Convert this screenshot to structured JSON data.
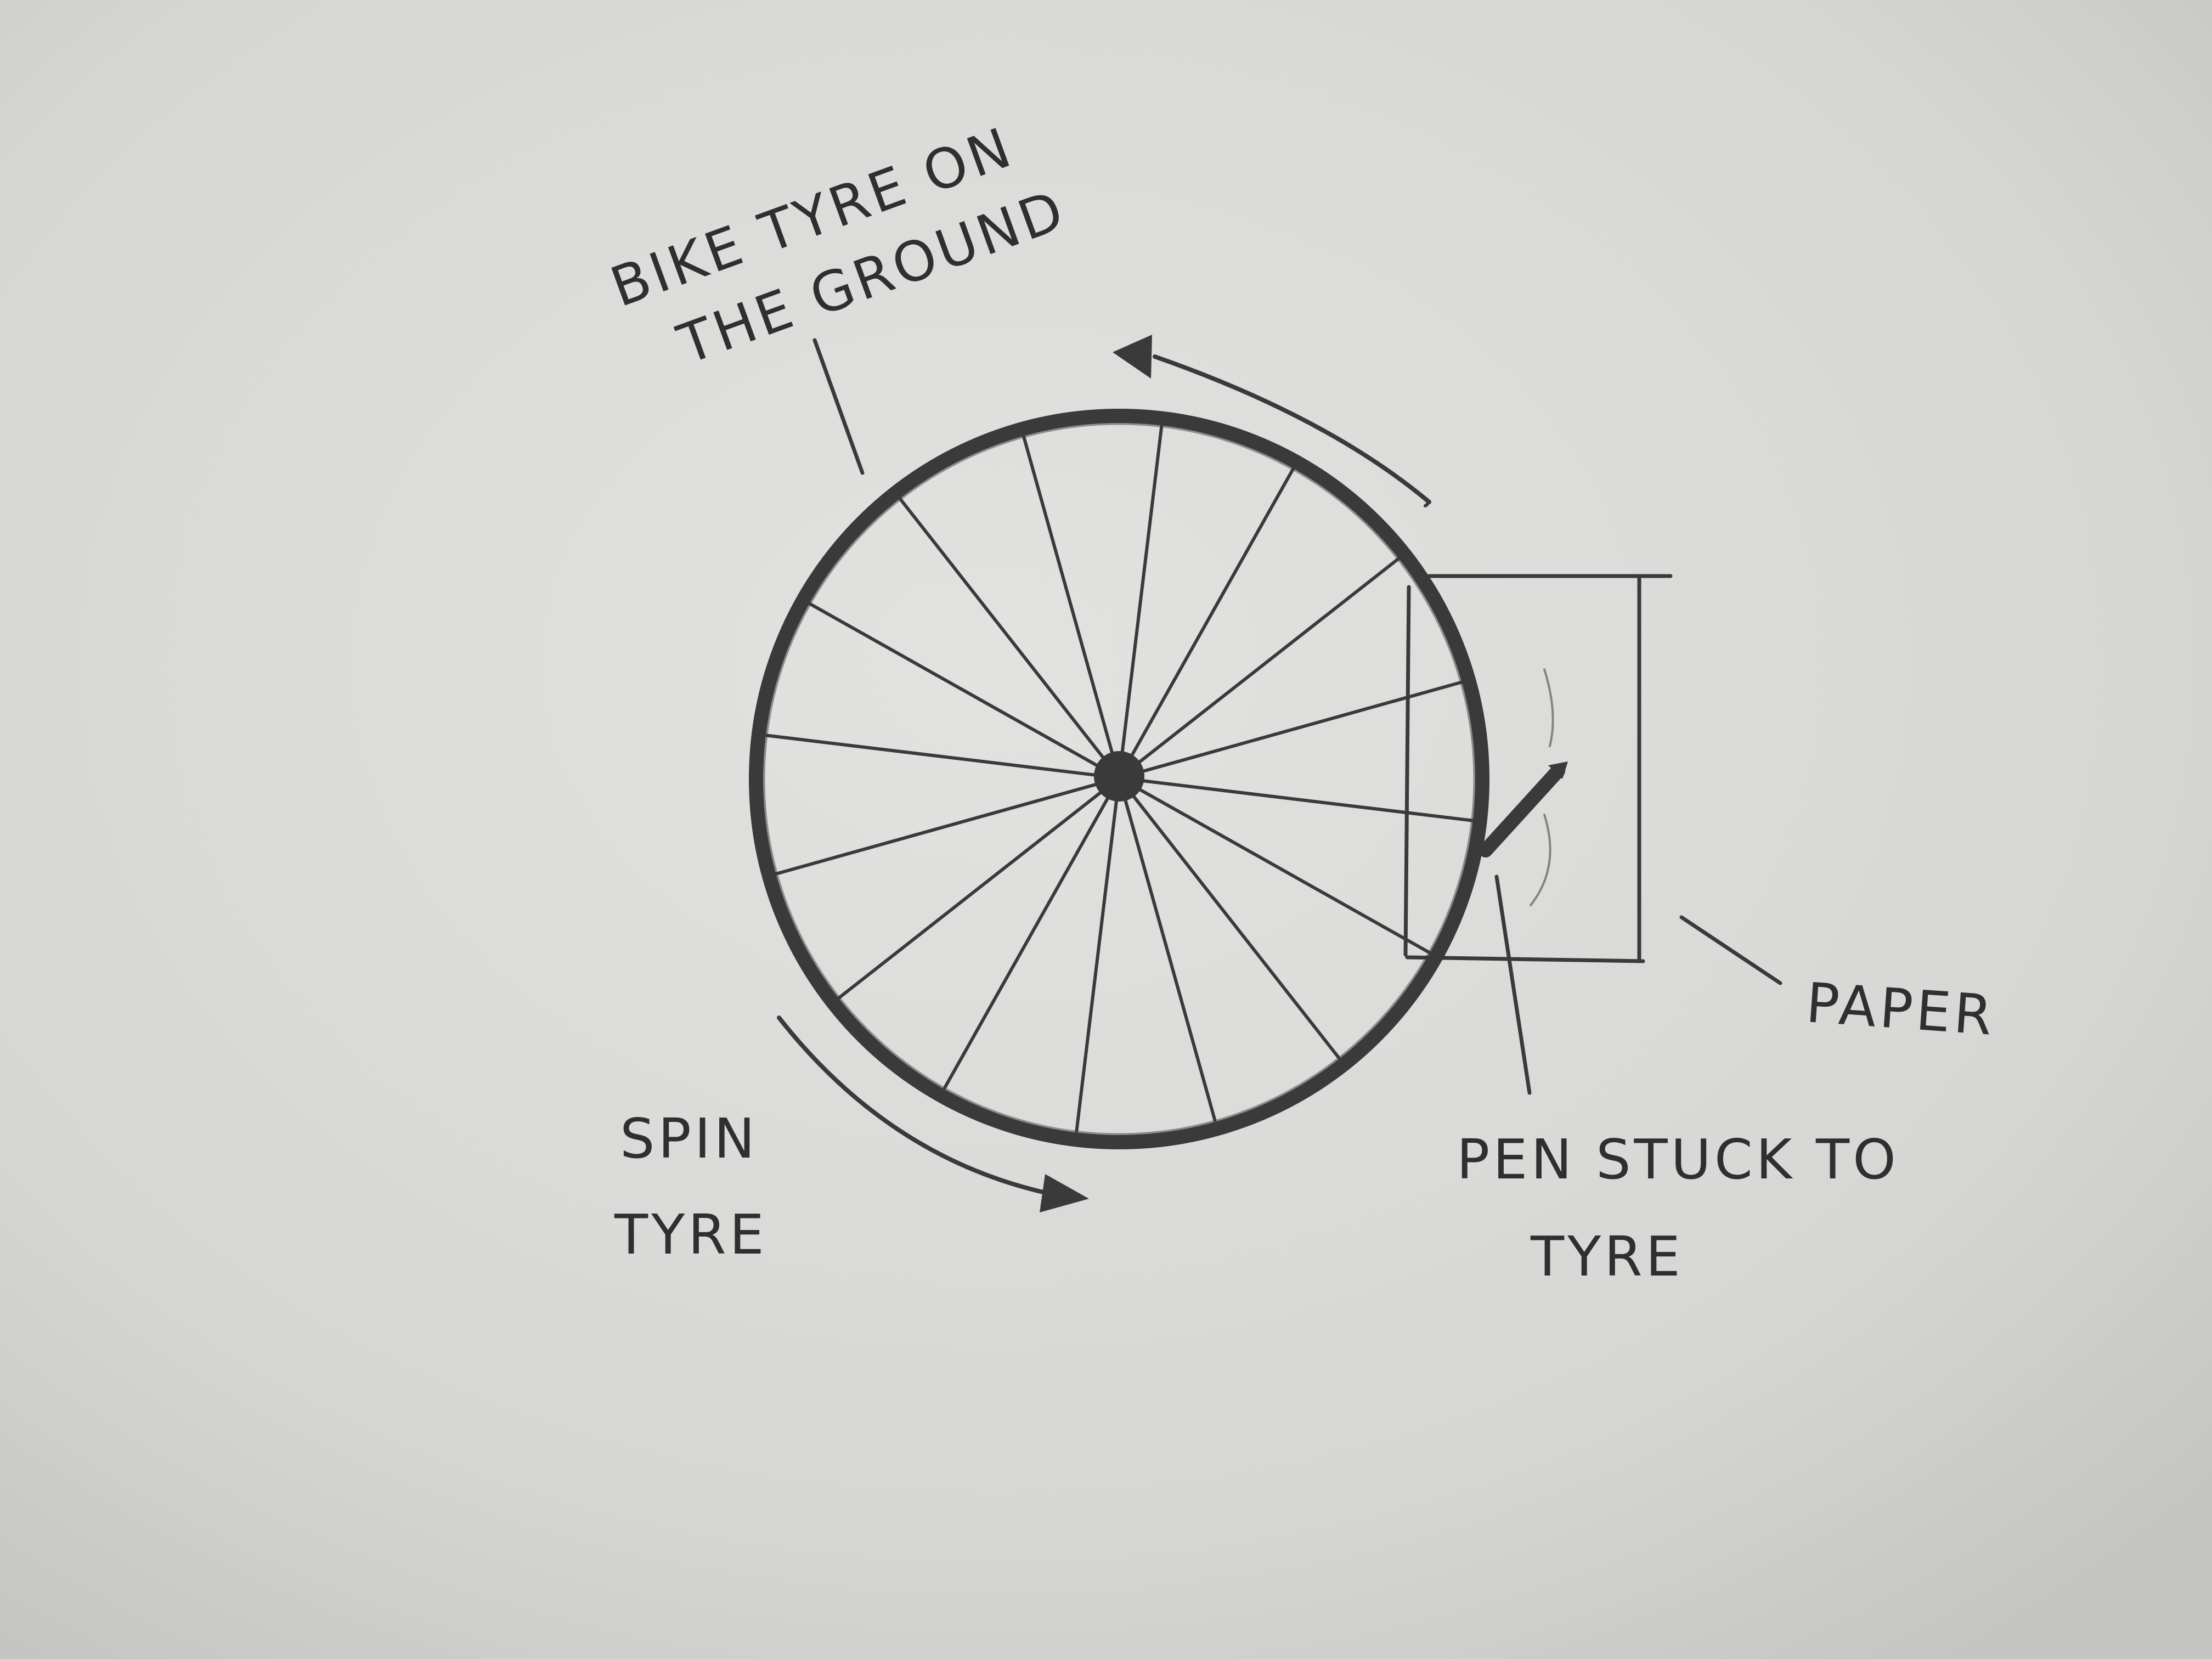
{
  "labels": {
    "tyre_line1": "BIKE TYRE ON",
    "tyre_line2": "THE GROUND",
    "paper": "PAPER",
    "pen_line1": "PEN STUCK TO",
    "pen_line2": "TYRE",
    "spin_line1": "SPIN",
    "spin_line2": "TYRE"
  },
  "wheel": {
    "spoke_count": 16
  },
  "colors": {
    "paper": "#d7d7d5",
    "pencil": "#3a3a3a"
  }
}
